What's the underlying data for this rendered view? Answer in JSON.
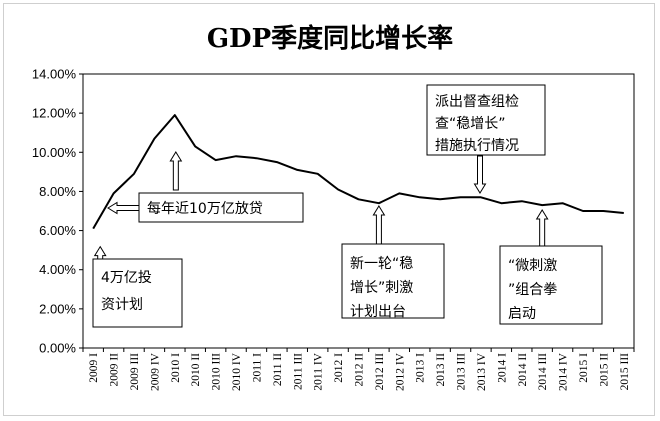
{
  "chart_data": {
    "type": "line",
    "title": "GDP季度同比增长率",
    "xlabel": "",
    "ylabel": "",
    "ylim": [
      0,
      14
    ],
    "yticks": [
      "0.00%",
      "2.00%",
      "4.00%",
      "6.00%",
      "8.00%",
      "10.00%",
      "12.00%",
      "14.00%"
    ],
    "grid": false,
    "legend": "none",
    "categories": [
      "2009 I",
      "2009 II",
      "2009 III",
      "2009 IV",
      "2010 I",
      "2010 II",
      "2010 III",
      "2010 IV",
      "2011 I",
      "2011 II",
      "2011 III",
      "2011 IV",
      "2012 I",
      "2012 II",
      "2012 III",
      "2012 IV",
      "2013 I",
      "2013 II",
      "2013 III",
      "2013 IV",
      "2014 I",
      "2014 II",
      "2014 III",
      "2014 IV",
      "2015 I",
      "2015 II",
      "2015 III"
    ],
    "series": [
      {
        "values": [
          6.1,
          7.9,
          8.9,
          10.7,
          11.9,
          10.3,
          9.6,
          9.8,
          9.7,
          9.5,
          9.1,
          8.9,
          8.1,
          7.6,
          7.4,
          7.9,
          7.7,
          7.6,
          7.7,
          7.7,
          7.4,
          7.5,
          7.3,
          7.4,
          7.0,
          7.0,
          6.9
        ],
        "color": "#000000"
      }
    ],
    "annotations": [
      {
        "lines": [
          "4万亿投",
          "资计划"
        ],
        "category_index": 0,
        "value": 6.2
      },
      {
        "lines": [
          "每年近10万亿放贷"
        ],
        "category_index": 1,
        "value": 7.3
      },
      {
        "lines": [
          "派出督查组检",
          "查“稳增长”",
          "措施执行情况"
        ],
        "category_index": 19,
        "value": 7.7
      },
      {
        "lines": [
          "新一轮“稳",
          "增长”刺激",
          "计划出台"
        ],
        "category_index": 14,
        "value": 7.4
      },
      {
        "lines": [
          "“微刺激",
          "”组合拳",
          "启动"
        ],
        "category_index": 22,
        "value": 7.3
      }
    ]
  }
}
